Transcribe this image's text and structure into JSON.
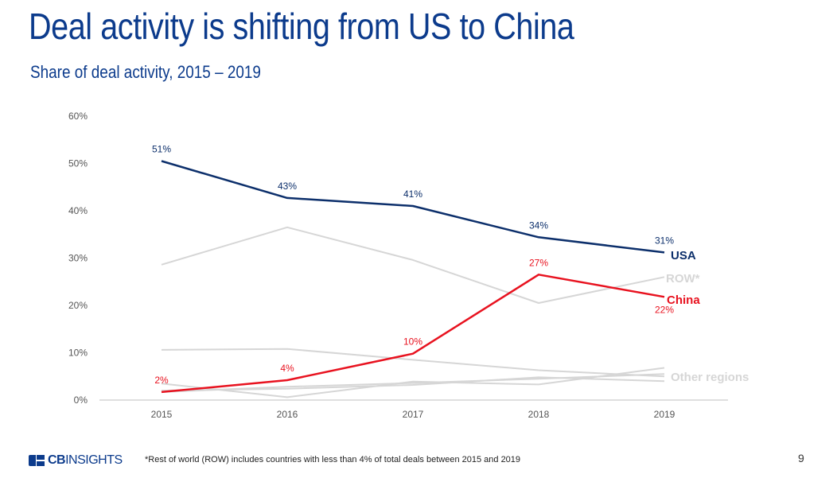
{
  "header": {
    "title": "Deal activity is shifting from US to China",
    "subtitle": "Share of deal activity, 2015 – 2019"
  },
  "footer": {
    "logo_text_bold": "CB",
    "logo_text_light": "INSIGHTS",
    "footnote": "*Rest of world (ROW) includes countries with less than 4% of total deals between 2015 and 2019",
    "page_number": "9"
  },
  "colors": {
    "usa": "#0c2f6b",
    "china": "#e8121f",
    "row": "#d6d6d6",
    "other": "#d6d6d6",
    "axis_text": "#555555"
  },
  "chart_data": {
    "type": "line",
    "categories": [
      "2015",
      "2016",
      "2017",
      "2018",
      "2019"
    ],
    "ylim": [
      0,
      60
    ],
    "yticks": [
      0,
      10,
      20,
      30,
      40,
      50,
      60
    ],
    "ytick_labels": [
      "0%",
      "10%",
      "20%",
      "30%",
      "40%",
      "50%",
      "60%"
    ],
    "grid": false,
    "series": [
      {
        "name": "USA",
        "role": "usa",
        "values": [
          50.5,
          42.7,
          41.0,
          34.4,
          31.2
        ],
        "data_labels": [
          "51%",
          "43%",
          "41%",
          "34%",
          "31%"
        ]
      },
      {
        "name": "China",
        "role": "china",
        "values": [
          1.7,
          4.2,
          9.8,
          26.5,
          21.8
        ],
        "data_labels": [
          "2%",
          "4%",
          "10%",
          "27%",
          "22%"
        ]
      },
      {
        "name": "ROW*",
        "role": "row",
        "values": [
          28.6,
          36.5,
          29.6,
          20.5,
          26.0
        ]
      },
      {
        "name": "",
        "role": "other",
        "values": [
          10.6,
          10.8,
          8.5,
          6.3,
          5.0
        ]
      },
      {
        "name": "",
        "role": "other",
        "values": [
          3.5,
          0.6,
          3.9,
          3.3,
          6.8
        ]
      },
      {
        "name": "",
        "role": "other",
        "values": [
          2.0,
          2.4,
          3.2,
          4.8,
          4.0
        ]
      },
      {
        "name": "",
        "role": "other",
        "values": [
          1.7,
          2.8,
          3.6,
          4.5,
          5.5
        ]
      }
    ],
    "annotations": [
      {
        "text": "USA",
        "role": "usa"
      },
      {
        "text": "ROW*",
        "role": "row"
      },
      {
        "text": "China",
        "role": "china"
      },
      {
        "text": "Other regions",
        "role": "other"
      }
    ]
  }
}
